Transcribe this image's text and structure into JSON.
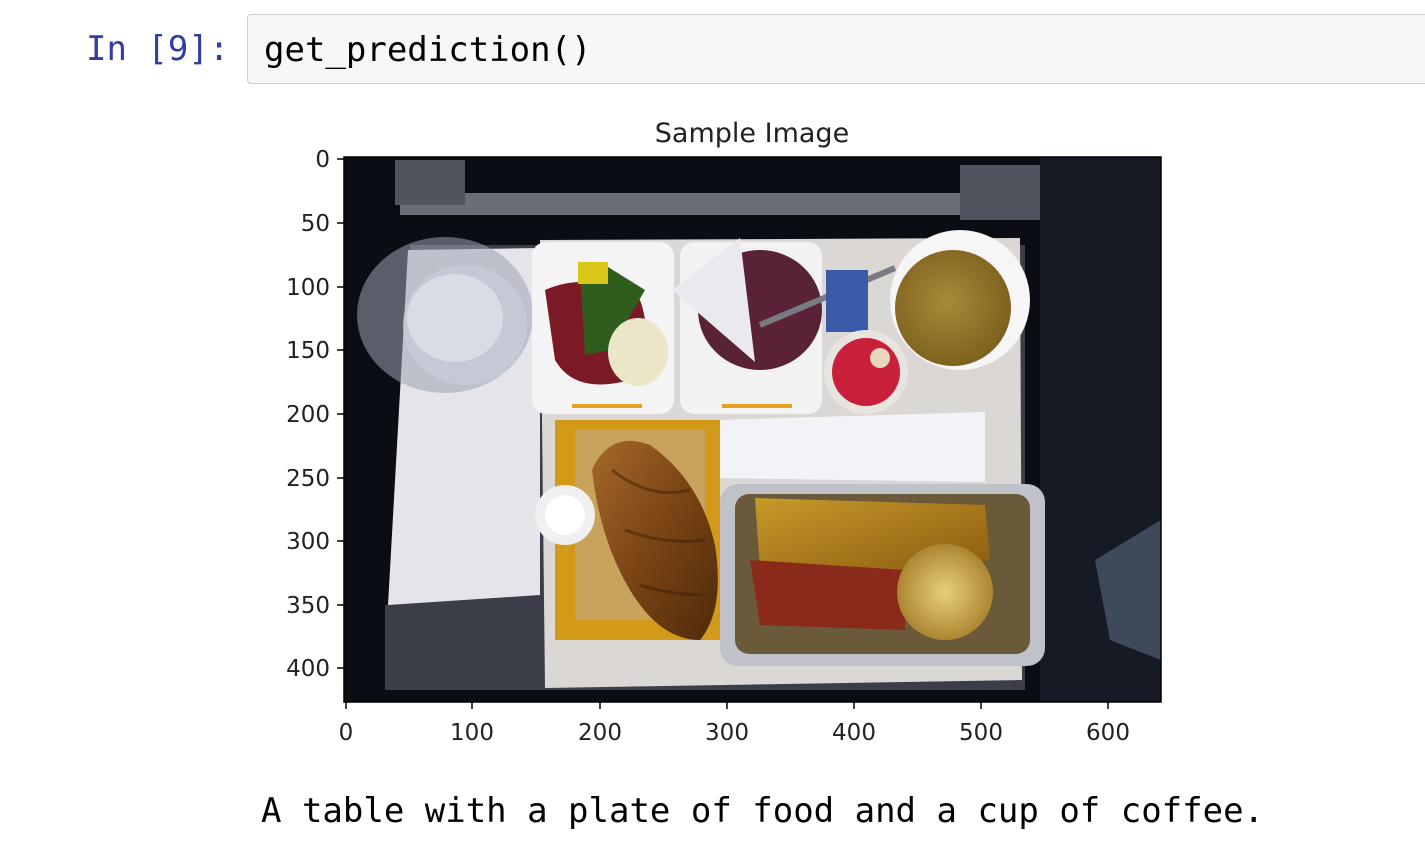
{
  "cell": {
    "prompt": "In [9]:",
    "code": "get_prediction()"
  },
  "output": {
    "plot_title": "Sample Image",
    "caption": "A table with a plate of food and a cup of coffee.",
    "x_ticks": [
      "0",
      "100",
      "200",
      "300",
      "400",
      "500",
      "600"
    ],
    "y_ticks": [
      "0",
      "50",
      "100",
      "150",
      "200",
      "250",
      "300",
      "350",
      "400"
    ]
  },
  "chart_data": {
    "type": "image",
    "title": "Sample Image",
    "xlabel": "",
    "ylabel": "",
    "xlim": [
      0,
      640
    ],
    "ylim": [
      427,
      0
    ],
    "x_ticks": [
      0,
      100,
      200,
      300,
      400,
      500,
      600
    ],
    "y_ticks": [
      0,
      50,
      100,
      150,
      200,
      250,
      300,
      350,
      400
    ]
  }
}
